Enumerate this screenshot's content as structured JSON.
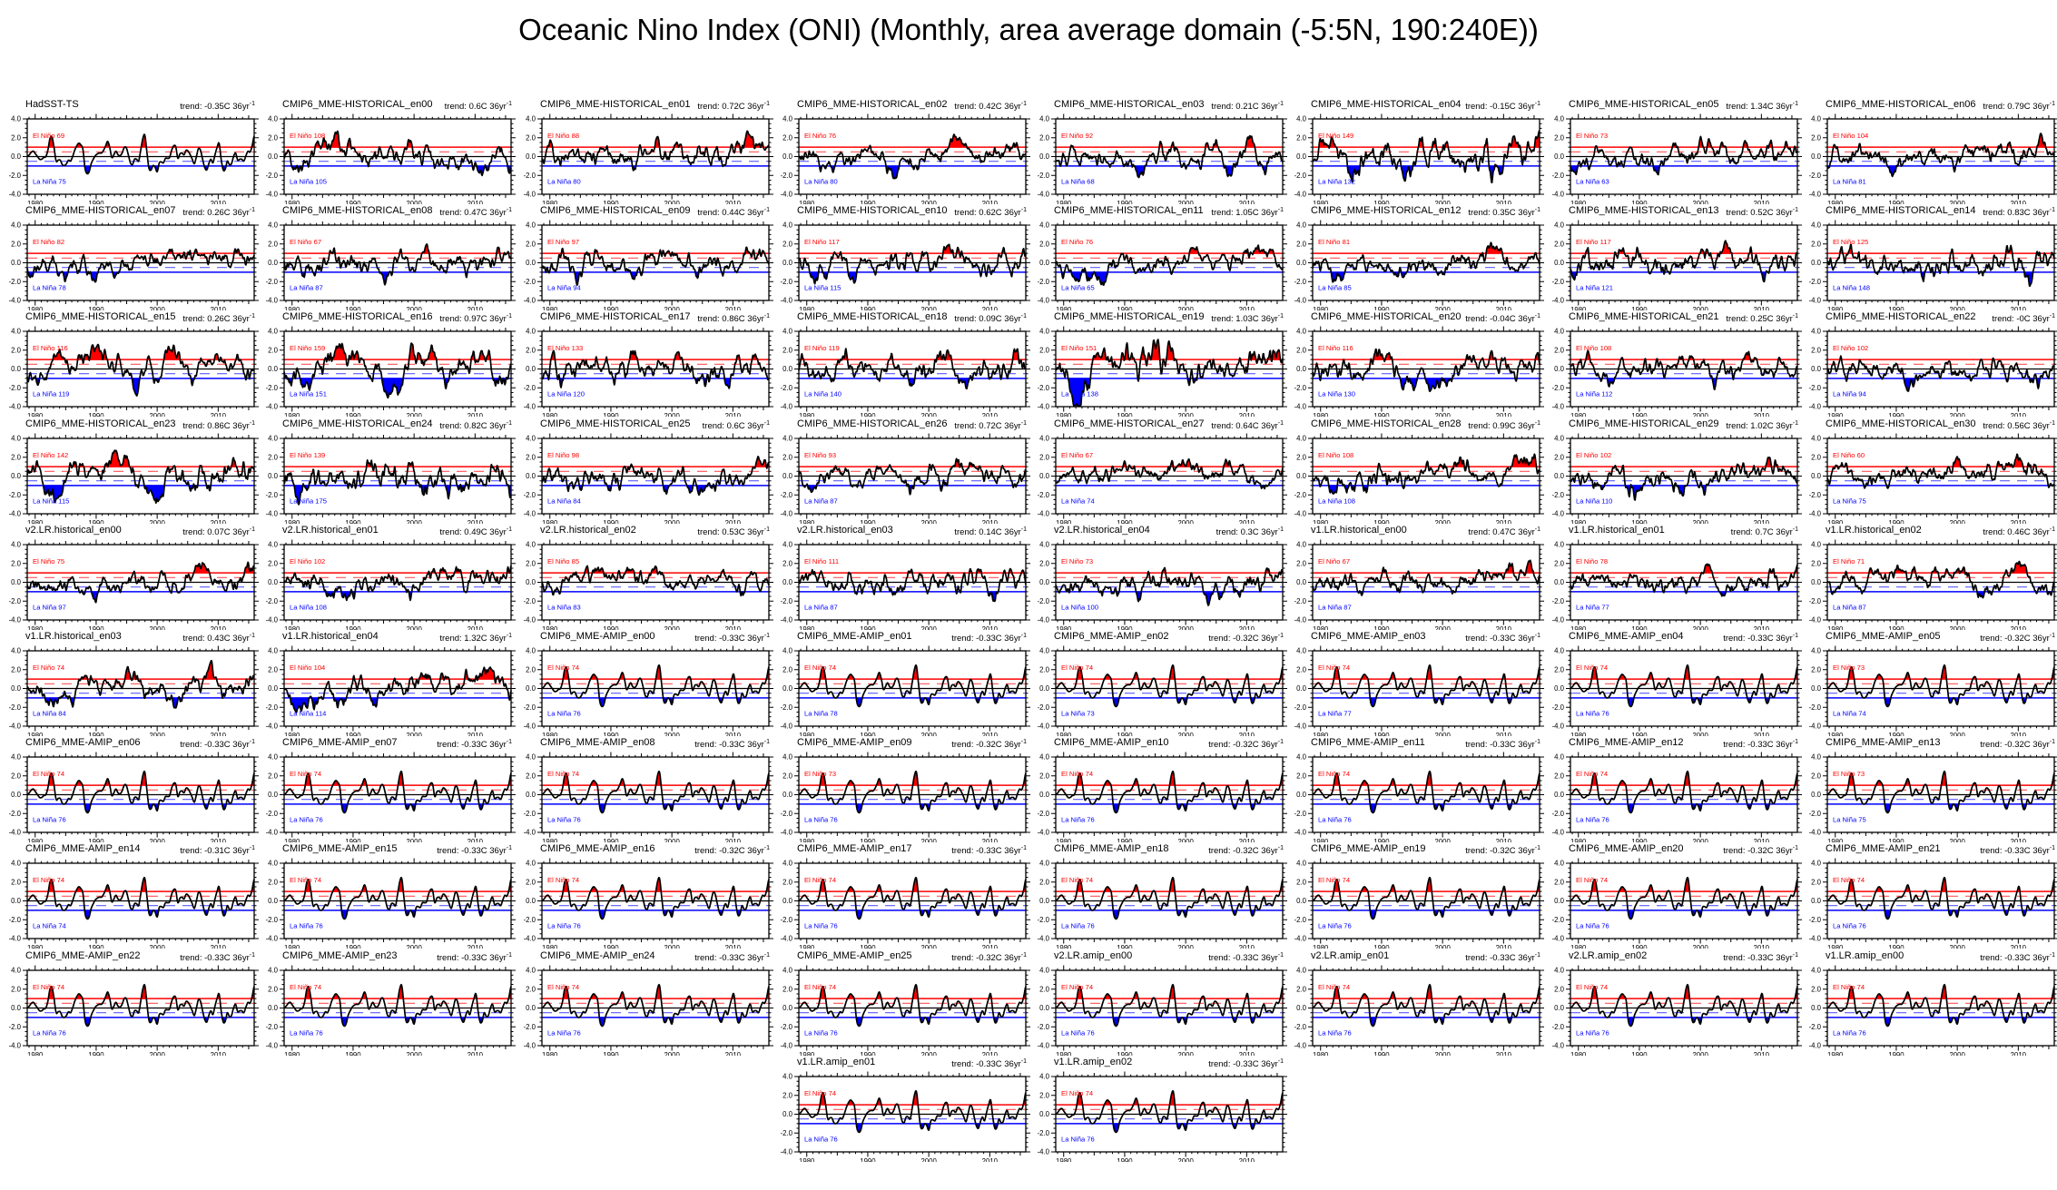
{
  "page": {
    "title": "Oceanic Nino Index (ONI) (Monthly, area average domain (-5:5N, 190:240E))"
  },
  "chart_data": {
    "type": "line",
    "title": "Oceanic Nino Index (ONI) (Monthly, area average domain (-5:5N, 190:240E))",
    "layout": {
      "rows": 10,
      "cols": 8,
      "note": "small-multiple grid; last row has 2 panels at columns 4-5"
    },
    "axis": {
      "x_ticks": [
        1980,
        1990,
        2000,
        2010
      ],
      "x_range": [
        1978.7,
        2015.9
      ],
      "y_ticks": [
        "4.0",
        "2.0",
        "0.0",
        "-2.0",
        "-4.0"
      ],
      "y_values": [
        4,
        2,
        0,
        -2,
        -4
      ],
      "y_range": [
        -4,
        4
      ],
      "el_nino_solid_threshold": 1.0,
      "el_nino_dashed_threshold": 0.5,
      "la_nina_dashed_threshold": -0.5,
      "la_nina_solid_threshold": -1.0,
      "zero_line": 0.0,
      "el_nino_prefix": "El Niño",
      "la_nina_prefix": "La Niña",
      "trend_sup": "-1",
      "grid": false,
      "colors": {
        "el_nino": "#ff0000",
        "la_nina": "#0000ff",
        "dashed_red": "#ff5555",
        "dashed_blue": "#5c5cff",
        "series": "#000000"
      }
    },
    "observed_oni": {
      "x_start": 1979.0,
      "x_step_years": 0.3333,
      "values": [
        0.0,
        0.2,
        0.5,
        0.6,
        0.3,
        0.0,
        -0.3,
        -0.3,
        -0.1,
        0.0,
        0.7,
        2.0,
        2.2,
        1.0,
        -0.5,
        -0.4,
        -0.4,
        -0.9,
        -1.0,
        -0.8,
        -0.4,
        -0.5,
        0.0,
        0.7,
        1.2,
        1.5,
        1.3,
        0.8,
        -1.3,
        -1.9,
        -1.7,
        -0.8,
        -0.3,
        0.1,
        0.3,
        0.4,
        0.4,
        0.7,
        1.2,
        1.7,
        1.0,
        -0.1,
        0.2,
        0.6,
        0.2,
        0.1,
        0.4,
        1.0,
        1.0,
        0.2,
        -0.7,
        -0.9,
        -0.3,
        -0.3,
        -0.5,
        0.7,
        2.0,
        2.4,
        0.5,
        -1.3,
        -1.5,
        -1.0,
        -1.2,
        -1.7,
        -0.7,
        -0.6,
        -0.7,
        -0.2,
        -0.2,
        -0.1,
        0.7,
        1.2,
        1.1,
        -0.2,
        0.3,
        0.4,
        0.2,
        0.7,
        0.6,
        0.2,
        -0.3,
        -0.8,
        0.0,
        0.9,
        0.7,
        -0.3,
        -1.2,
        -1.5,
        -0.8,
        -0.3,
        -0.7,
        0.2,
        1.0,
        1.5,
        -0.3,
        -1.5,
        -1.4,
        -0.5,
        -0.9,
        -0.8,
        0.0,
        0.4,
        -0.4,
        -0.3,
        -0.3,
        -0.5,
        0.1,
        0.6,
        0.5,
        1.2,
        2.3
      ]
    },
    "panels": [
      {
        "t": "HadSST-TS",
        "tr": "trend: -0.35C 36yr",
        "en": 69,
        "ln": 75,
        "m": "obs",
        "a": 0.95
      },
      {
        "t": "CMIP6_MME-HISTORICAL_en00",
        "tr": "trend: 0.6C 36yr",
        "en": 108,
        "ln": 105,
        "m": "cpl",
        "sd": 1,
        "a": 1.05,
        "tv": 0.6
      },
      {
        "t": "CMIP6_MME-HISTORICAL_en01",
        "tr": "trend: 0.72C 36yr",
        "en": 88,
        "ln": 80,
        "m": "cpl",
        "sd": 2,
        "a": 1.0,
        "tv": 0.72
      },
      {
        "t": "CMIP6_MME-HISTORICAL_en02",
        "tr": "trend: 0.42C 36yr",
        "en": 76,
        "ln": 80,
        "m": "cpl",
        "sd": 3,
        "a": 0.95,
        "tv": 0.42
      },
      {
        "t": "CMIP6_MME-HISTORICAL_en03",
        "tr": "trend: 0.21C 36yr",
        "en": 92,
        "ln": 68,
        "m": "cpl",
        "sd": 4,
        "a": 1.0,
        "tv": 0.21
      },
      {
        "t": "CMIP6_MME-HISTORICAL_en04",
        "tr": "trend: -0.15C 36yr",
        "en": 149,
        "ln": 132,
        "m": "cpl",
        "sd": 5,
        "a": 1.45,
        "tv": -0.15
      },
      {
        "t": "CMIP6_MME-HISTORICAL_en05",
        "tr": "trend: 1.34C 36yr",
        "en": 73,
        "ln": 63,
        "m": "cpl",
        "sd": 6,
        "a": 0.9,
        "tv": 1.34
      },
      {
        "t": "CMIP6_MME-HISTORICAL_en06",
        "tr": "trend: 0.79C 36yr",
        "en": 104,
        "ln": 81,
        "m": "cpl",
        "sd": 7,
        "a": 1.0,
        "tv": 0.79
      },
      {
        "t": "CMIP6_MME-HISTORICAL_en07",
        "tr": "trend: 0.26C 36yr",
        "en": 82,
        "ln": 78,
        "m": "cpl",
        "sd": 8,
        "a": 0.95,
        "tv": 0.26
      },
      {
        "t": "CMIP6_MME-HISTORICAL_en08",
        "tr": "trend: 0.47C 36yr",
        "en": 67,
        "ln": 87,
        "m": "cpl",
        "sd": 9,
        "a": 1.0,
        "tv": 0.47
      },
      {
        "t": "CMIP6_MME-HISTORICAL_en09",
        "tr": "trend: 0.44C 36yr",
        "en": 97,
        "ln": 94,
        "m": "cpl",
        "sd": 10,
        "a": 1.05,
        "tv": 0.44
      },
      {
        "t": "CMIP6_MME-HISTORICAL_en10",
        "tr": "trend: 0.62C 36yr",
        "en": 117,
        "ln": 115,
        "m": "cpl",
        "sd": 11,
        "a": 1.15,
        "tv": 0.62
      },
      {
        "t": "CMIP6_MME-HISTORICAL_en11",
        "tr": "trend: 1.05C 36yr",
        "en": 76,
        "ln": 65,
        "m": "cpl",
        "sd": 12,
        "a": 0.95,
        "tv": 1.05
      },
      {
        "t": "CMIP6_MME-HISTORICAL_en12",
        "tr": "trend: 0.35C 36yr",
        "en": 81,
        "ln": 85,
        "m": "cpl",
        "sd": 13,
        "a": 0.95,
        "tv": 0.35
      },
      {
        "t": "CMIP6_MME-HISTORICAL_en13",
        "tr": "trend: 0.52C 36yr",
        "en": 117,
        "ln": 121,
        "m": "cpl",
        "sd": 14,
        "a": 1.2,
        "tv": 0.52
      },
      {
        "t": "CMIP6_MME-HISTORICAL_en14",
        "tr": "trend: 0.83C 36yr",
        "en": 125,
        "ln": 148,
        "m": "cpl",
        "sd": 15,
        "a": 1.3,
        "tv": 0.83
      },
      {
        "t": "CMIP6_MME-HISTORICAL_en15",
        "tr": "trend: 0.26C 36yr",
        "en": 116,
        "ln": 119,
        "m": "cpl",
        "sd": 16,
        "a": 1.1,
        "tv": 0.26
      },
      {
        "t": "CMIP6_MME-HISTORICAL_en16",
        "tr": "trend: 0.97C 36yr",
        "en": 159,
        "ln": 151,
        "m": "cpl",
        "sd": 17,
        "a": 1.3,
        "tv": 0.97
      },
      {
        "t": "CMIP6_MME-HISTORICAL_en17",
        "tr": "trend: 0.86C 36yr",
        "en": 133,
        "ln": 120,
        "m": "cpl",
        "sd": 18,
        "a": 1.2,
        "tv": 0.86
      },
      {
        "t": "CMIP6_MME-HISTORICAL_en18",
        "tr": "trend: 0.09C 36yr",
        "en": 119,
        "ln": 140,
        "m": "cpl",
        "sd": 19,
        "a": 1.2,
        "tv": 0.09
      },
      {
        "t": "CMIP6_MME-HISTORICAL_en19",
        "tr": "trend: 1.03C 36yr",
        "en": 151,
        "ln": 138,
        "m": "cpl",
        "sd": 20,
        "a": 1.45,
        "tv": 1.03
      },
      {
        "t": "CMIP6_MME-HISTORICAL_en20",
        "tr": "trend: -0.04C 36yr",
        "en": 116,
        "ln": 130,
        "m": "cpl",
        "sd": 21,
        "a": 1.1,
        "tv": -0.04
      },
      {
        "t": "CMIP6_MME-HISTORICAL_en21",
        "tr": "trend: 0.25C 36yr",
        "en": 108,
        "ln": 112,
        "m": "cpl",
        "sd": 22,
        "a": 1.0,
        "tv": 0.25
      },
      {
        "t": "CMIP6_MME-HISTORICAL_en22",
        "tr": "trend: -0C 36yr",
        "en": 102,
        "ln": 94,
        "m": "cpl",
        "sd": 23,
        "a": 1.0,
        "tv": 0
      },
      {
        "t": "CMIP6_MME-HISTORICAL_en23",
        "tr": "trend: 0.86C 36yr",
        "en": 142,
        "ln": 115,
        "m": "cpl",
        "sd": 24,
        "a": 1.25,
        "tv": 0.86
      },
      {
        "t": "CMIP6_MME-HISTORICAL_en24",
        "tr": "trend: 0.82C 36yr",
        "en": 139,
        "ln": 175,
        "m": "cpl",
        "sd": 25,
        "a": 1.4,
        "tv": 0.82
      },
      {
        "t": "CMIP6_MME-HISTORICAL_en25",
        "tr": "trend: 0.6C 36yr",
        "en": 98,
        "ln": 84,
        "m": "cpl",
        "sd": 26,
        "a": 1.0,
        "tv": 0.6
      },
      {
        "t": "CMIP6_MME-HISTORICAL_en26",
        "tr": "trend: 0.72C 36yr",
        "en": 93,
        "ln": 87,
        "m": "cpl",
        "sd": 27,
        "a": 1.0,
        "tv": 0.72
      },
      {
        "t": "CMIP6_MME-HISTORICAL_en27",
        "tr": "trend: 0.64C 36yr",
        "en": 67,
        "ln": 74,
        "m": "cpl",
        "sd": 28,
        "a": 0.9,
        "tv": 0.64
      },
      {
        "t": "CMIP6_MME-HISTORICAL_en28",
        "tr": "trend: 0.99C 36yr",
        "en": 108,
        "ln": 108,
        "m": "cpl",
        "sd": 29,
        "a": 1.1,
        "tv": 0.99
      },
      {
        "t": "CMIP6_MME-HISTORICAL_en29",
        "tr": "trend: 1.02C 36yr",
        "en": 102,
        "ln": 110,
        "m": "cpl",
        "sd": 30,
        "a": 1.15,
        "tv": 1.02
      },
      {
        "t": "CMIP6_MME-HISTORICAL_en30",
        "tr": "trend: 0.56C 36yr",
        "en": 60,
        "ln": 75,
        "m": "cpl",
        "sd": 31,
        "a": 0.95,
        "tv": 0.56
      },
      {
        "t": "v2.LR.historical_en00",
        "tr": "trend: 0.07C 36yr",
        "en": 75,
        "ln": 97,
        "m": "cpl",
        "sd": 32,
        "a": 0.95,
        "tv": 0.07
      },
      {
        "t": "v2.LR.historical_en01",
        "tr": "trend: 0.49C 36yr",
        "en": 102,
        "ln": 108,
        "m": "cpl",
        "sd": 33,
        "a": 1.05,
        "tv": 0.49
      },
      {
        "t": "v2.LR.historical_en02",
        "tr": "trend: 0.53C 36yr",
        "en": 85,
        "ln": 83,
        "m": "cpl",
        "sd": 34,
        "a": 0.95,
        "tv": 0.53
      },
      {
        "t": "v2.LR.historical_en03",
        "tr": "trend: 0.14C 36yr",
        "en": 111,
        "ln": 87,
        "m": "cpl",
        "sd": 35,
        "a": 1.1,
        "tv": 0.14
      },
      {
        "t": "v2.LR.historical_en04",
        "tr": "trend: 0.3C 36yr",
        "en": 73,
        "ln": 100,
        "m": "cpl",
        "sd": 36,
        "a": 1.05,
        "tv": 0.3
      },
      {
        "t": "v1.LR.historical_en00",
        "tr": "trend: 0.47C 36yr",
        "en": 67,
        "ln": 87,
        "m": "cpl",
        "sd": 37,
        "a": 0.95,
        "tv": 0.47
      },
      {
        "t": "v1.LR.historical_en01",
        "tr": "trend: 0.7C 36yr",
        "en": 78,
        "ln": 77,
        "m": "cpl",
        "sd": 38,
        "a": 0.95,
        "tv": 0.7
      },
      {
        "t": "v1.LR.historical_en02",
        "tr": "trend: 0.46C 36yr",
        "en": 71,
        "ln": 87,
        "m": "cpl",
        "sd": 39,
        "a": 0.95,
        "tv": 0.46
      },
      {
        "t": "v1.LR.historical_en03",
        "tr": "trend: 0.43C 36yr",
        "en": 74,
        "ln": 84,
        "m": "cpl",
        "sd": 40,
        "a": 1.05,
        "tv": 0.43
      },
      {
        "t": "v1.LR.historical_en04",
        "tr": "trend: 1.32C 36yr",
        "en": 104,
        "ln": 114,
        "m": "cpl",
        "sd": 41,
        "a": 1.1,
        "tv": 1.32
      },
      {
        "t": "CMIP6_MME-AMIP_en00",
        "tr": "trend: -0.33C 36yr",
        "en": 74,
        "ln": 76,
        "m": "obs"
      },
      {
        "t": "CMIP6_MME-AMIP_en01",
        "tr": "trend: -0.33C 36yr",
        "en": 74,
        "ln": 78,
        "m": "obs"
      },
      {
        "t": "CMIP6_MME-AMIP_en02",
        "tr": "trend: -0.32C 36yr",
        "en": 74,
        "ln": 73,
        "m": "obs"
      },
      {
        "t": "CMIP6_MME-AMIP_en03",
        "tr": "trend: -0.33C 36yr",
        "en": 74,
        "ln": 77,
        "m": "obs"
      },
      {
        "t": "CMIP6_MME-AMIP_en04",
        "tr": "trend: -0.33C 36yr",
        "en": 74,
        "ln": 76,
        "m": "obs"
      },
      {
        "t": "CMIP6_MME-AMIP_en05",
        "tr": "trend: -0.32C 36yr",
        "en": 73,
        "ln": 74,
        "m": "obs"
      },
      {
        "t": "CMIP6_MME-AMIP_en06",
        "tr": "trend: -0.33C 36yr",
        "en": 74,
        "ln": 76,
        "m": "obs"
      },
      {
        "t": "CMIP6_MME-AMIP_en07",
        "tr": "trend: -0.33C 36yr",
        "en": 74,
        "ln": 76,
        "m": "obs"
      },
      {
        "t": "CMIP6_MME-AMIP_en08",
        "tr": "trend: -0.33C 36yr",
        "en": 74,
        "ln": 76,
        "m": "obs"
      },
      {
        "t": "CMIP6_MME-AMIP_en09",
        "tr": "trend: -0.32C 36yr",
        "en": 73,
        "ln": 76,
        "m": "obs"
      },
      {
        "t": "CMIP6_MME-AMIP_en10",
        "tr": "trend: -0.32C 36yr",
        "en": 74,
        "ln": 76,
        "m": "obs"
      },
      {
        "t": "CMIP6_MME-AMIP_en11",
        "tr": "trend: -0.33C 36yr",
        "en": 74,
        "ln": 76,
        "m": "obs"
      },
      {
        "t": "CMIP6_MME-AMIP_en12",
        "tr": "trend: -0.33C 36yr",
        "en": 74,
        "ln": 76,
        "m": "obs"
      },
      {
        "t": "CMIP6_MME-AMIP_en13",
        "tr": "trend: -0.32C 36yr",
        "en": 73,
        "ln": 75,
        "m": "obs"
      },
      {
        "t": "CMIP6_MME-AMIP_en14",
        "tr": "trend: -0.31C 36yr",
        "en": 74,
        "ln": 74,
        "m": "obs"
      },
      {
        "t": "CMIP6_MME-AMIP_en15",
        "tr": "trend: -0.33C 36yr",
        "en": 74,
        "ln": 76,
        "m": "obs"
      },
      {
        "t": "CMIP6_MME-AMIP_en16",
        "tr": "trend: -0.32C 36yr",
        "en": 74,
        "ln": 76,
        "m": "obs"
      },
      {
        "t": "CMIP6_MME-AMIP_en17",
        "tr": "trend: -0.33C 36yr",
        "en": 74,
        "ln": 76,
        "m": "obs"
      },
      {
        "t": "CMIP6_MME-AMIP_en18",
        "tr": "trend: -0.32C 36yr",
        "en": 74,
        "ln": 76,
        "m": "obs"
      },
      {
        "t": "CMIP6_MME-AMIP_en19",
        "tr": "trend: -0.32C 36yr",
        "en": 74,
        "ln": 76,
        "m": "obs"
      },
      {
        "t": "CMIP6_MME-AMIP_en20",
        "tr": "trend: -0.32C 36yr",
        "en": 74,
        "ln": 76,
        "m": "obs"
      },
      {
        "t": "CMIP6_MME-AMIP_en21",
        "tr": "trend: -0.33C 36yr",
        "en": 74,
        "ln": 76,
        "m": "obs"
      },
      {
        "t": "CMIP6_MME-AMIP_en22",
        "tr": "trend: -0.33C 36yr",
        "en": 74,
        "ln": 76,
        "m": "obs"
      },
      {
        "t": "CMIP6_MME-AMIP_en23",
        "tr": "trend: -0.33C 36yr",
        "en": 74,
        "ln": 76,
        "m": "obs"
      },
      {
        "t": "CMIP6_MME-AMIP_en24",
        "tr": "trend: -0.33C 36yr",
        "en": 74,
        "ln": 76,
        "m": "obs"
      },
      {
        "t": "CMIP6_MME-AMIP_en25",
        "tr": "trend: -0.32C 36yr",
        "en": 74,
        "ln": 76,
        "m": "obs"
      },
      {
        "t": "v2.LR.amip_en00",
        "tr": "trend: -0.33C 36yr",
        "en": 74,
        "ln": 76,
        "m": "obs"
      },
      {
        "t": "v2.LR.amip_en01",
        "tr": "trend: -0.33C 36yr",
        "en": 74,
        "ln": 76,
        "m": "obs"
      },
      {
        "t": "v2.LR.amip_en02",
        "tr": "trend: -0.33C 36yr",
        "en": 74,
        "ln": 76,
        "m": "obs"
      },
      {
        "t": "v1.LR.amip_en00",
        "tr": "trend: -0.33C 36yr",
        "en": 74,
        "ln": 76,
        "m": "obs"
      },
      {
        "t": "v1.LR.amip_en01",
        "tr": "trend: -0.33C 36yr",
        "en": 74,
        "ln": 76,
        "m": "obs",
        "r": 9,
        "c": 3
      },
      {
        "t": "v1.LR.amip_en02",
        "tr": "trend: -0.33C 36yr",
        "en": 74,
        "ln": 76,
        "m": "obs",
        "r": 9,
        "c": 4
      }
    ]
  }
}
